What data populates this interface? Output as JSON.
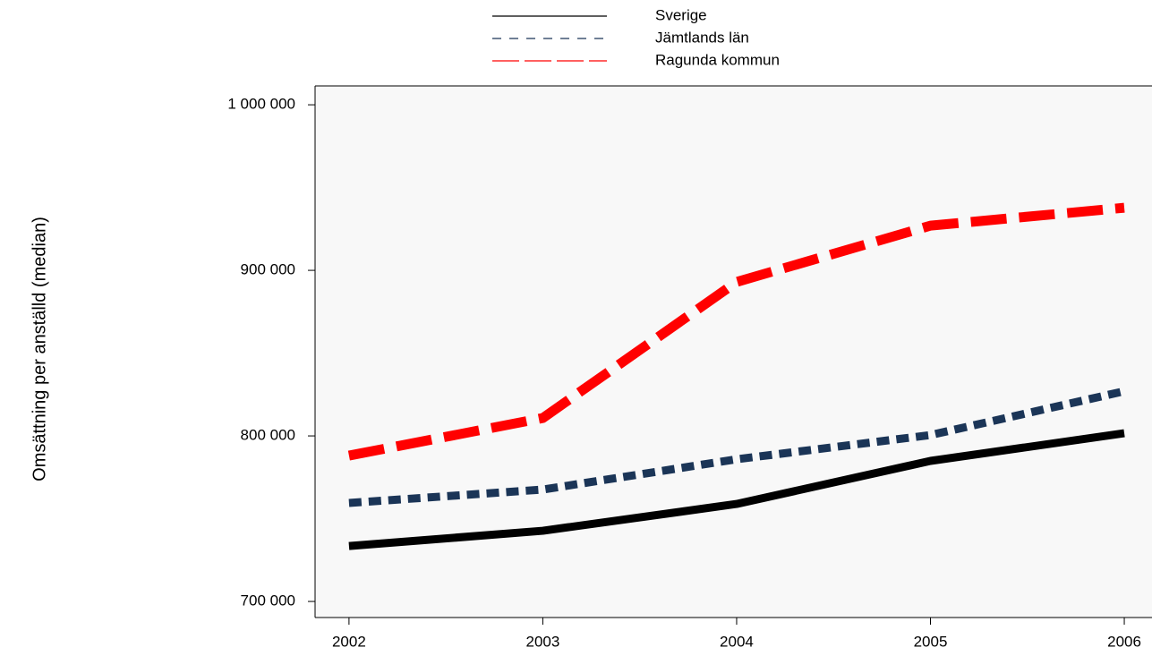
{
  "chart_data": {
    "type": "line",
    "y_label": "Omsättning per anställd (median)",
    "x": [
      2002,
      2003,
      2004,
      2005,
      2006
    ],
    "xlim": [
      2001.825,
      2006.143
    ],
    "xticks": [
      2002,
      2003,
      2004,
      2005,
      2006
    ],
    "ylim": [
      690300,
      1011400
    ],
    "yticks": [
      {
        "value": 700000,
        "label": "700 000"
      },
      {
        "value": 800000,
        "label": "800 000"
      },
      {
        "value": 900000,
        "label": "900 000"
      },
      {
        "value": 1000000,
        "label": "1 000 000"
      }
    ],
    "legend": "top",
    "series": [
      {
        "name": "Sverige",
        "color": "#000000",
        "dash": "solid",
        "values": [
          733500,
          742700,
          758900,
          784900,
          801600
        ]
      },
      {
        "name": "Jämtlands län",
        "color": "#1b3557",
        "dash": "short",
        "values": [
          759500,
          767600,
          785900,
          800500,
          827000
        ]
      },
      {
        "name": "Ragunda kommun",
        "color": "#ff0000",
        "dash": "long",
        "values": [
          788100,
          810800,
          893000,
          927000,
          937800
        ]
      }
    ]
  }
}
